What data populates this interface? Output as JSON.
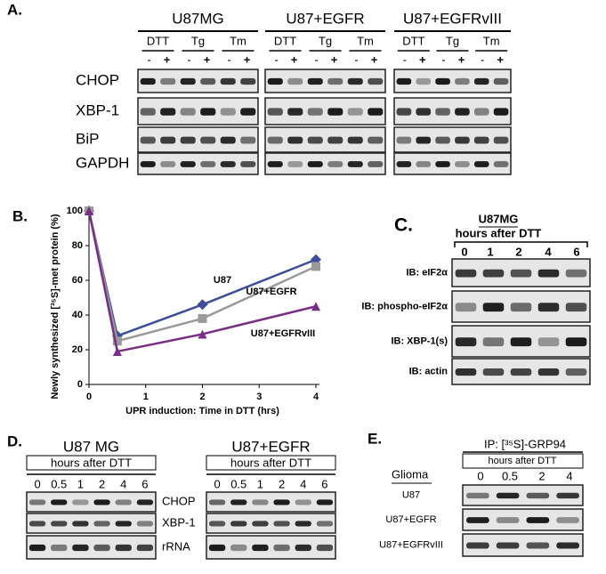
{
  "panel_a": {
    "label": "A.",
    "groups": [
      {
        "name": "U87MG",
        "treatments": [
          "DTT",
          "Tg",
          "Tm"
        ]
      },
      {
        "name": "U87+EGFR",
        "treatments": [
          "DTT",
          "Tg",
          "Tm"
        ]
      },
      {
        "name": "U87+EGFRvIII",
        "treatments": [
          "DTT",
          "Tg",
          "Tm"
        ]
      }
    ],
    "signs": [
      "-",
      "+"
    ],
    "rows": [
      "CHOP",
      "XBP-1",
      "BiP",
      "GAPDH"
    ]
  },
  "chart_data": {
    "type": "line",
    "label": "B.",
    "x_label": "UPR induction: Time in DTT (hrs)",
    "y_label": "Newly synthesized [³⁵S]-met protein (%)",
    "x": [
      0,
      0.5,
      2,
      4
    ],
    "series": [
      {
        "name": "U87",
        "color": "#3d4f9c",
        "marker": "diamond",
        "values": [
          100,
          28,
          46,
          72
        ]
      },
      {
        "name": "U87+EGFR",
        "color": "#9a9a9a",
        "marker": "square",
        "values": [
          100,
          25,
          38,
          68
        ]
      },
      {
        "name": "U87+EGFRvIII",
        "color": "#7a2e88",
        "marker": "triangle",
        "values": [
          100,
          19,
          29,
          45
        ]
      }
    ],
    "xlim": [
      0,
      4
    ],
    "ylim": [
      0,
      100
    ],
    "xticks": [
      0,
      1,
      2,
      3,
      4
    ],
    "yticks": [
      0,
      20,
      40,
      60,
      80,
      100
    ]
  },
  "panel_c": {
    "label": "C.",
    "title": "U87MG",
    "subtitle": "hours after DTT",
    "lanes": [
      "0",
      "1",
      "2",
      "4",
      "6"
    ],
    "rows": [
      "IB: eIF2α",
      "IB: phospho-eIF2α",
      "IB: XBP-1(s)",
      "IB: actin"
    ]
  },
  "panel_d": {
    "label": "D.",
    "blots": [
      {
        "title": "U87 MG",
        "subtitle": "hours after DTT",
        "lanes": [
          "0",
          "0.5",
          "1",
          "2",
          "4",
          "6"
        ]
      },
      {
        "title": "U87+EGFR",
        "subtitle": "hours after DTT",
        "lanes": [
          "0",
          "0.5",
          "1",
          "2",
          "4",
          "6"
        ]
      }
    ],
    "rows": [
      "CHOP",
      "XBP-1",
      "rRNA"
    ]
  },
  "panel_e": {
    "label": "E.",
    "title": "IP: [³⁵S]-GRP94",
    "subtitle": "hours after DTT",
    "header": "Glioma",
    "lanes": [
      "0",
      "0.5",
      "2",
      "4"
    ],
    "rows": [
      "U87",
      "U87+EGFR",
      "U87+EGFRvIII"
    ]
  }
}
